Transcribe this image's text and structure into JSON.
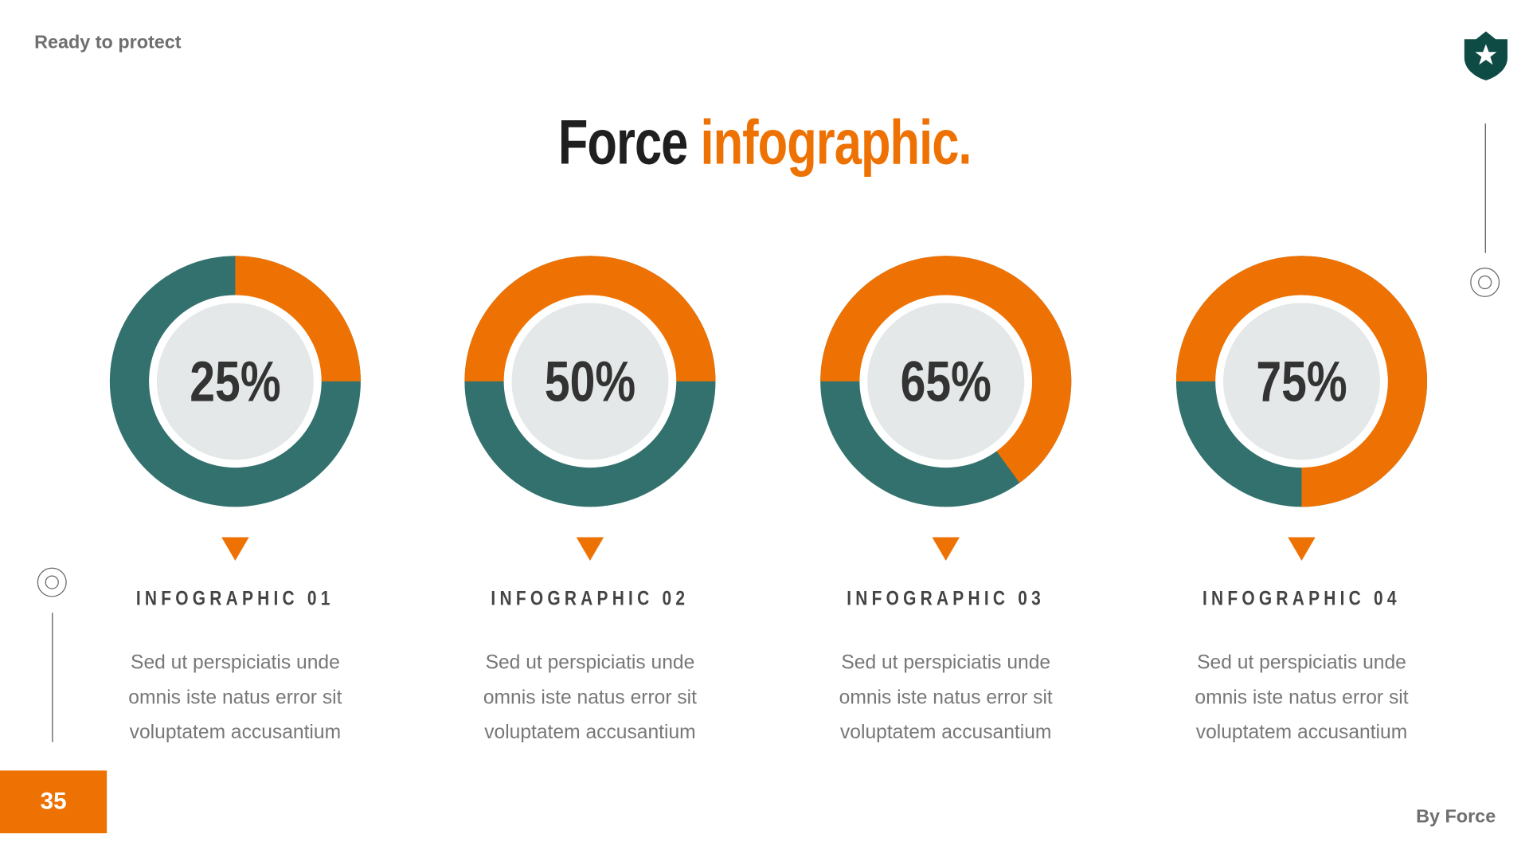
{
  "header": {
    "tagline": "Ready to protect",
    "title_part1": "Force",
    "title_part2": "infographic."
  },
  "footer": {
    "page_number": "35",
    "credit": "By Force"
  },
  "colors": {
    "accent": "#ee7203",
    "teal": "#33716e",
    "inner": "#e5e8e8",
    "shield": "#0e4b45"
  },
  "icons": {
    "logo": "shield-star-icon"
  },
  "chart_data": {
    "type": "pie",
    "variant": "donut",
    "items": [
      {
        "value": 25,
        "label": "25%",
        "title": "INFOGRAPHIC 01",
        "text": [
          "Sed ut perspiciatis unde",
          "omnis iste natus error sit",
          "voluptatem accusantium"
        ]
      },
      {
        "value": 50,
        "label": "50%",
        "title": "INFOGRAPHIC 02",
        "text": [
          "Sed ut perspiciatis unde",
          "omnis iste natus error sit",
          "voluptatem accusantium"
        ]
      },
      {
        "value": 65,
        "label": "65%",
        "title": "INFOGRAPHIC 03",
        "text": [
          "Sed ut perspiciatis unde",
          "omnis iste natus error sit",
          "voluptatem accusantium"
        ]
      },
      {
        "value": 75,
        "label": "75%",
        "title": "INFOGRAPHIC 04",
        "text": [
          "Sed ut perspiciatis unde",
          "omnis iste natus error sit",
          "voluptatem accusantium"
        ]
      }
    ]
  }
}
